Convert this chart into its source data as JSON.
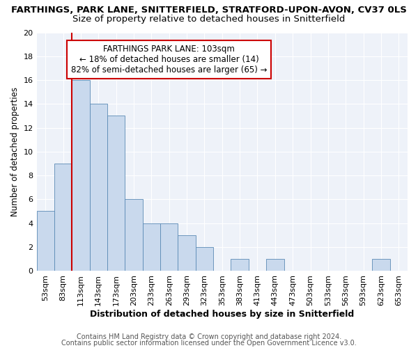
{
  "title": "FARTHINGS, PARK LANE, SNITTERFIELD, STRATFORD-UPON-AVON, CV37 0LS",
  "subtitle": "Size of property relative to detached houses in Snitterfield",
  "xlabel": "Distribution of detached houses by size in Snitterfield",
  "ylabel": "Number of detached properties",
  "categories": [
    "53sqm",
    "83sqm",
    "113sqm",
    "143sqm",
    "173sqm",
    "203sqm",
    "233sqm",
    "263sqm",
    "293sqm",
    "323sqm",
    "353sqm",
    "383sqm",
    "413sqm",
    "443sqm",
    "473sqm",
    "503sqm",
    "533sqm",
    "563sqm",
    "593sqm",
    "623sqm",
    "653sqm"
  ],
  "values": [
    5,
    9,
    16,
    14,
    13,
    6,
    4,
    4,
    3,
    2,
    0,
    1,
    0,
    1,
    0,
    0,
    0,
    0,
    0,
    1,
    0
  ],
  "bar_color": "#c9d9ed",
  "bar_edge_color": "#5a8ab5",
  "vline_x": 1.5,
  "annotation_title": "FARTHINGS PARK LANE: 103sqm",
  "annotation_line1": "← 18% of detached houses are smaller (14)",
  "annotation_line2": "82% of semi-detached houses are larger (65) →",
  "annotation_box_color": "#ffffff",
  "annotation_box_edge": "#cc0000",
  "vline_color": "#cc0000",
  "ylim": [
    0,
    20
  ],
  "yticks": [
    0,
    2,
    4,
    6,
    8,
    10,
    12,
    14,
    16,
    18,
    20
  ],
  "background_color": "#eef2f9",
  "footer1": "Contains HM Land Registry data © Crown copyright and database right 2024.",
  "footer2": "Contains public sector information licensed under the Open Government Licence v3.0.",
  "title_fontsize": 9.5,
  "subtitle_fontsize": 9.5,
  "xlabel_fontsize": 9,
  "ylabel_fontsize": 8.5,
  "tick_fontsize": 8,
  "footer_fontsize": 7,
  "annotation_fontsize": 8.5
}
